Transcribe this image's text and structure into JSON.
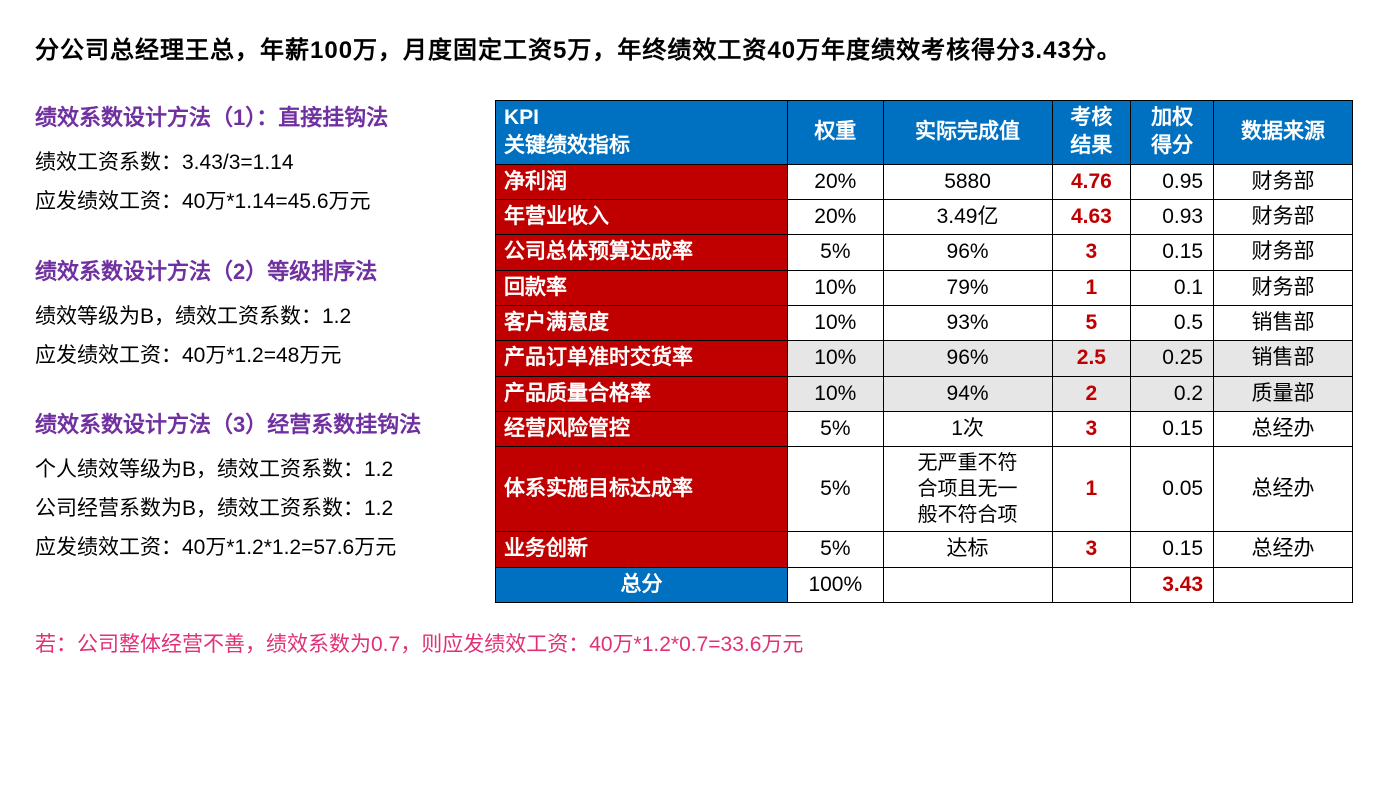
{
  "title": "分公司总经理王总，年薪100万，月度固定工资5万，年终绩效工资40万年度绩效考核得分3.43分。",
  "methods": [
    {
      "title": "绩效系数设计方法（1）：直接挂钩法",
      "lines": [
        "绩效工资系数：3.43/3=1.14",
        "应发绩效工资：40万*1.14=45.6万元"
      ]
    },
    {
      "title": "绩效系数设计方法（2）等级排序法",
      "lines": [
        "绩效等级为B，绩效工资系数：1.2",
        "应发绩效工资：40万*1.2=48万元"
      ]
    },
    {
      "title": "绩效系数设计方法（3）经营系数挂钩法",
      "lines": [
        "个人绩效等级为B，绩效工资系数：1.2",
        "公司经营系数为B，绩效工资系数：1.2",
        "应发绩效工资：40万*1.2*1.2=57.6万元"
      ]
    }
  ],
  "footer": "若：公司整体经营不善，绩效系数为0.7，则应发绩效工资：40万*1.2*0.7=33.6万元",
  "table": {
    "headers": {
      "kpi_line1": "KPI",
      "kpi_line2": "关键绩效指标",
      "weight": "权重",
      "actual": "实际完成值",
      "result_line1": "考核",
      "result_line2": "结果",
      "weighted_line1": "加权",
      "weighted_line2": "得分",
      "source": "数据来源"
    },
    "rows": [
      {
        "kpi": "净利润",
        "weight": "20%",
        "actual": "5880",
        "result": "4.76",
        "weighted": "0.95",
        "source": "财务部",
        "alt": false
      },
      {
        "kpi": "年营业收入",
        "weight": "20%",
        "actual": "3.49亿",
        "result": "4.63",
        "weighted": "0.93",
        "source": "财务部",
        "alt": false
      },
      {
        "kpi": "公司总体预算达成率",
        "weight": "5%",
        "actual": "96%",
        "result": "3",
        "weighted": "0.15",
        "source": "财务部",
        "alt": false
      },
      {
        "kpi": "回款率",
        "weight": "10%",
        "actual": "79%",
        "result": "1",
        "weighted": "0.1",
        "source": "财务部",
        "alt": false
      },
      {
        "kpi": "客户满意度",
        "weight": "10%",
        "actual": "93%",
        "result": "5",
        "weighted": "0.5",
        "source": "销售部",
        "alt": false
      },
      {
        "kpi": "产品订单准时交货率",
        "weight": "10%",
        "actual": "96%",
        "result": "2.5",
        "weighted": "0.25",
        "source": "销售部",
        "alt": true
      },
      {
        "kpi": "产品质量合格率",
        "weight": "10%",
        "actual": "94%",
        "result": "2",
        "weighted": "0.2",
        "source": "质量部",
        "alt": true
      },
      {
        "kpi": "经营风险管控",
        "weight": "5%",
        "actual": "1次",
        "result": "3",
        "weighted": "0.15",
        "source": "总经办",
        "alt": false
      },
      {
        "kpi": "体系实施目标达成率",
        "weight": "5%",
        "actual": "无严重不符合项且无一般不符合项",
        "result": "1",
        "weighted": "0.05",
        "source": "总经办",
        "alt": false,
        "multiline": true
      },
      {
        "kpi": "业务创新",
        "weight": "5%",
        "actual": "达标",
        "result": "3",
        "weighted": "0.15",
        "source": "总经办",
        "alt": false
      }
    ],
    "total": {
      "label": "总分",
      "weight": "100%",
      "actual": "",
      "result": "",
      "weighted": "3.43",
      "source": ""
    }
  }
}
